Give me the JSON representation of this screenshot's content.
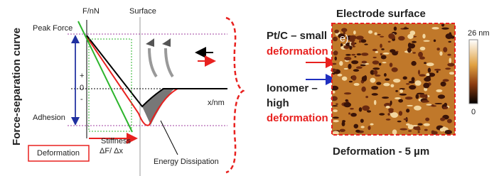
{
  "left": {
    "y_axis_title": "Force-separation curve",
    "f_axis": "F/nN",
    "surface": "Surface",
    "peak_force": "Peak Force",
    "plus": "+",
    "zero": "0",
    "minus": "-",
    "adhesion": "Adhesion",
    "x_axis": "x/nm",
    "deformation": "Deformation",
    "stiffness": [
      "Stiffness",
      "ΔF/ Δx"
    ],
    "energy": "Energy Dissipation"
  },
  "right": {
    "title": "Electrode surface",
    "ptc": [
      "Pt/C – small",
      "deformation"
    ],
    "ionomer": [
      "Ionomer –",
      "high",
      "deformation"
    ],
    "panel": "e)",
    "scale_max": "26 nm",
    "scale_min": "0",
    "caption": "Deformation - 5 µm"
  }
}
